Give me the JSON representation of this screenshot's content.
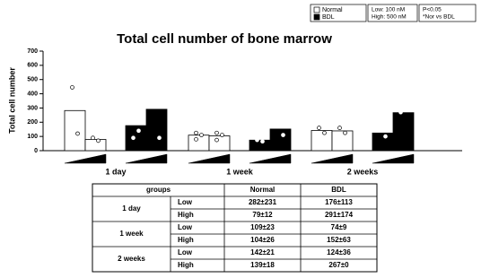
{
  "chart_data": {
    "type": "bar",
    "title": "Total cell number of bone marrow",
    "y_label": "Total cell number",
    "categories": [
      "1 day",
      "1 week",
      "2 weeks"
    ],
    "series": [
      {
        "name": "Normal",
        "color": "#ffffff",
        "values": [
          [
            282,
            79
          ],
          [
            109,
            104
          ],
          [
            142,
            139
          ]
        ],
        "points": [
          [
            [
              445,
              120
            ],
            [
              90,
              70
            ]
          ],
          [
            [
              125,
              110,
              80
            ],
            [
              125,
              110,
              75
            ]
          ],
          [
            [
              160,
              125
            ],
            [
              160,
              125
            ]
          ]
        ]
      },
      {
        "name": "BDL",
        "color": "#000000",
        "values": [
          [
            176,
            291
          ],
          [
            74,
            152
          ],
          [
            124,
            267
          ]
        ],
        "points": [
          [
            [
              300,
              140,
              90
            ],
            [
              390,
              90
            ]
          ],
          [
            [
              75,
              65
            ],
            [
              195,
              110
            ]
          ],
          [
            [
              145,
              100
            ],
            [
              270
            ]
          ]
        ]
      }
    ],
    "ylim": [
      0,
      700
    ],
    "yticks": [
      0,
      100,
      200,
      300,
      400,
      500,
      600,
      700
    ],
    "dose_note": [
      "Low: 100 nM",
      "High: 500 nM"
    ],
    "stat_note": [
      "P<0.05",
      "*Nor vs BDL"
    ]
  },
  "table": {
    "header": [
      "groups",
      "Normal",
      "BDL"
    ],
    "groups": [
      {
        "name": "1 day",
        "rows": [
          [
            "Low",
            "282±231",
            "176±113"
          ],
          [
            "High",
            "79±12",
            "291±174"
          ]
        ]
      },
      {
        "name": "1 week",
        "rows": [
          [
            "Low",
            "109±23",
            "74±9"
          ],
          [
            "High",
            "104±26",
            "152±63"
          ]
        ]
      },
      {
        "name": "2 weeks",
        "rows": [
          [
            "Low",
            "142±21",
            "124±36"
          ],
          [
            "High",
            "139±18",
            "267±0"
          ]
        ]
      }
    ]
  }
}
